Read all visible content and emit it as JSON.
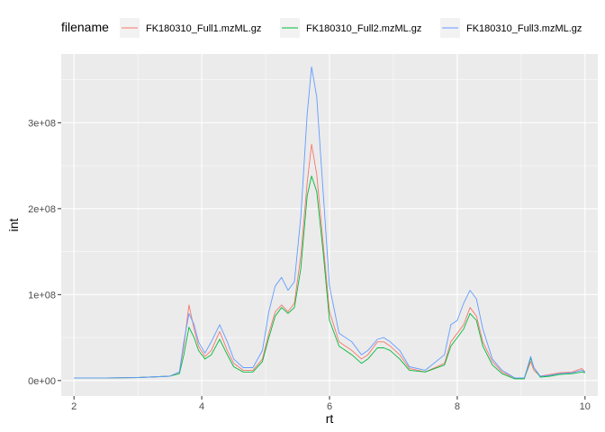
{
  "chart_data": {
    "type": "line",
    "title": "",
    "xlabel": "rt",
    "ylabel": "int",
    "xlim": [
      1.8,
      10.2
    ],
    "ylim": [
      -18000000,
      380000000
    ],
    "x_ticks": [
      2,
      4,
      6,
      8,
      10
    ],
    "x_tick_labels": [
      "2",
      "4",
      "6",
      "8",
      "10"
    ],
    "y_ticks": [
      0,
      100000000,
      200000000,
      300000000
    ],
    "y_tick_labels": [
      "0e+00",
      "1e+08",
      "2e+08",
      "3e+08"
    ],
    "grid": true,
    "legend": {
      "title": "filename",
      "position": "top"
    },
    "series": [
      {
        "name": "FK180310_Full1.mzML.gz",
        "color": "#F8766D",
        "points": [
          [
            2.0,
            3000000
          ],
          [
            2.5,
            3000000
          ],
          [
            3.0,
            3500000
          ],
          [
            3.5,
            5000000
          ],
          [
            3.65,
            10000000
          ],
          [
            3.72,
            40000000
          ],
          [
            3.8,
            88000000
          ],
          [
            3.88,
            60000000
          ],
          [
            3.95,
            40000000
          ],
          [
            4.05,
            28000000
          ],
          [
            4.15,
            35000000
          ],
          [
            4.28,
            57000000
          ],
          [
            4.4,
            35000000
          ],
          [
            4.5,
            20000000
          ],
          [
            4.65,
            12000000
          ],
          [
            4.8,
            12000000
          ],
          [
            4.95,
            25000000
          ],
          [
            5.05,
            55000000
          ],
          [
            5.15,
            80000000
          ],
          [
            5.25,
            88000000
          ],
          [
            5.35,
            80000000
          ],
          [
            5.45,
            90000000
          ],
          [
            5.55,
            145000000
          ],
          [
            5.65,
            230000000
          ],
          [
            5.72,
            275000000
          ],
          [
            5.8,
            240000000
          ],
          [
            5.9,
            160000000
          ],
          [
            6.0,
            80000000
          ],
          [
            6.15,
            45000000
          ],
          [
            6.35,
            35000000
          ],
          [
            6.5,
            25000000
          ],
          [
            6.6,
            30000000
          ],
          [
            6.75,
            45000000
          ],
          [
            6.85,
            45000000
          ],
          [
            6.95,
            40000000
          ],
          [
            7.1,
            30000000
          ],
          [
            7.25,
            14000000
          ],
          [
            7.5,
            10000000
          ],
          [
            7.8,
            20000000
          ],
          [
            7.9,
            45000000
          ],
          [
            8.0,
            55000000
          ],
          [
            8.1,
            65000000
          ],
          [
            8.2,
            85000000
          ],
          [
            8.3,
            75000000
          ],
          [
            8.4,
            45000000
          ],
          [
            8.55,
            22000000
          ],
          [
            8.7,
            10000000
          ],
          [
            8.9,
            3000000
          ],
          [
            9.05,
            3000000
          ],
          [
            9.15,
            22000000
          ],
          [
            9.2,
            12000000
          ],
          [
            9.3,
            5000000
          ],
          [
            9.45,
            7000000
          ],
          [
            9.6,
            9000000
          ],
          [
            9.8,
            10000000
          ],
          [
            9.95,
            14000000
          ],
          [
            10.0,
            10000000
          ]
        ]
      },
      {
        "name": "FK180310_Full2.mzML.gz",
        "color": "#00BA38",
        "points": [
          [
            2.0,
            3000000
          ],
          [
            2.5,
            3000000
          ],
          [
            3.0,
            3500000
          ],
          [
            3.5,
            5000000
          ],
          [
            3.65,
            8000000
          ],
          [
            3.72,
            30000000
          ],
          [
            3.8,
            62000000
          ],
          [
            3.88,
            50000000
          ],
          [
            3.95,
            35000000
          ],
          [
            4.05,
            25000000
          ],
          [
            4.15,
            30000000
          ],
          [
            4.28,
            48000000
          ],
          [
            4.4,
            30000000
          ],
          [
            4.5,
            16000000
          ],
          [
            4.65,
            10000000
          ],
          [
            4.8,
            10000000
          ],
          [
            4.95,
            22000000
          ],
          [
            5.05,
            50000000
          ],
          [
            5.15,
            75000000
          ],
          [
            5.25,
            85000000
          ],
          [
            5.35,
            78000000
          ],
          [
            5.45,
            85000000
          ],
          [
            5.55,
            130000000
          ],
          [
            5.65,
            215000000
          ],
          [
            5.72,
            238000000
          ],
          [
            5.8,
            220000000
          ],
          [
            5.9,
            150000000
          ],
          [
            6.0,
            70000000
          ],
          [
            6.15,
            40000000
          ],
          [
            6.35,
            30000000
          ],
          [
            6.5,
            20000000
          ],
          [
            6.6,
            25000000
          ],
          [
            6.75,
            38000000
          ],
          [
            6.85,
            38000000
          ],
          [
            6.95,
            35000000
          ],
          [
            7.1,
            25000000
          ],
          [
            7.25,
            12000000
          ],
          [
            7.5,
            10000000
          ],
          [
            7.8,
            18000000
          ],
          [
            7.9,
            40000000
          ],
          [
            8.0,
            50000000
          ],
          [
            8.1,
            60000000
          ],
          [
            8.2,
            78000000
          ],
          [
            8.3,
            70000000
          ],
          [
            8.4,
            40000000
          ],
          [
            8.55,
            18000000
          ],
          [
            8.7,
            8000000
          ],
          [
            8.9,
            2000000
          ],
          [
            9.05,
            2000000
          ],
          [
            9.15,
            26000000
          ],
          [
            9.2,
            15000000
          ],
          [
            9.3,
            4000000
          ],
          [
            9.45,
            5000000
          ],
          [
            9.6,
            7000000
          ],
          [
            9.8,
            8000000
          ],
          [
            9.95,
            10000000
          ],
          [
            10.0,
            9000000
          ]
        ]
      },
      {
        "name": "FK180310_Full3.mzML.gz",
        "color": "#619CFF",
        "points": [
          [
            2.0,
            3000000
          ],
          [
            2.5,
            3000000
          ],
          [
            3.0,
            3500000
          ],
          [
            3.5,
            5000000
          ],
          [
            3.65,
            10000000
          ],
          [
            3.72,
            45000000
          ],
          [
            3.8,
            78000000
          ],
          [
            3.88,
            65000000
          ],
          [
            3.95,
            45000000
          ],
          [
            4.05,
            32000000
          ],
          [
            4.15,
            45000000
          ],
          [
            4.28,
            65000000
          ],
          [
            4.4,
            45000000
          ],
          [
            4.5,
            25000000
          ],
          [
            4.65,
            15000000
          ],
          [
            4.8,
            15000000
          ],
          [
            4.95,
            35000000
          ],
          [
            5.05,
            80000000
          ],
          [
            5.15,
            110000000
          ],
          [
            5.25,
            120000000
          ],
          [
            5.35,
            105000000
          ],
          [
            5.45,
            115000000
          ],
          [
            5.55,
            190000000
          ],
          [
            5.65,
            310000000
          ],
          [
            5.72,
            365000000
          ],
          [
            5.8,
            330000000
          ],
          [
            5.9,
            220000000
          ],
          [
            6.0,
            110000000
          ],
          [
            6.15,
            55000000
          ],
          [
            6.35,
            45000000
          ],
          [
            6.5,
            30000000
          ],
          [
            6.6,
            35000000
          ],
          [
            6.75,
            48000000
          ],
          [
            6.85,
            50000000
          ],
          [
            6.95,
            45000000
          ],
          [
            7.1,
            35000000
          ],
          [
            7.25,
            16000000
          ],
          [
            7.5,
            12000000
          ],
          [
            7.8,
            30000000
          ],
          [
            7.9,
            65000000
          ],
          [
            8.0,
            70000000
          ],
          [
            8.1,
            90000000
          ],
          [
            8.2,
            105000000
          ],
          [
            8.3,
            95000000
          ],
          [
            8.4,
            60000000
          ],
          [
            8.55,
            25000000
          ],
          [
            8.7,
            12000000
          ],
          [
            8.9,
            3000000
          ],
          [
            9.05,
            3000000
          ],
          [
            9.15,
            28000000
          ],
          [
            9.2,
            15000000
          ],
          [
            9.3,
            5000000
          ],
          [
            9.45,
            6000000
          ],
          [
            9.6,
            8000000
          ],
          [
            9.8,
            9000000
          ],
          [
            9.95,
            12000000
          ],
          [
            10.0,
            10000000
          ]
        ]
      }
    ]
  }
}
